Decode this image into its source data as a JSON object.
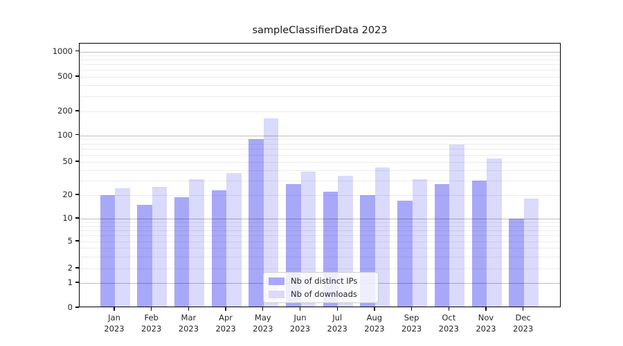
{
  "chart_data": {
    "type": "bar",
    "title": "sampleClassifierData 2023",
    "categories": [
      "Jan",
      "Feb",
      "Mar",
      "Apr",
      "May",
      "Jun",
      "Jul",
      "Aug",
      "Sep",
      "Oct",
      "Nov",
      "Dec"
    ],
    "year_suffix": "2023",
    "series": [
      {
        "name": "Nb of distinct IPs",
        "color": "#a8a8f8",
        "values": [
          20,
          15,
          19,
          23,
          90,
          27,
          22,
          20,
          17,
          27,
          30,
          10
        ]
      },
      {
        "name": "Nb of downloads",
        "color": "#dadafb",
        "values": [
          24,
          25,
          31,
          37,
          165,
          38,
          34,
          43,
          31,
          78,
          55,
          18
        ]
      }
    ],
    "xlabel": "",
    "ylabel": "",
    "yscale": "symlog",
    "ylim": [
      0,
      1000
    ],
    "yticks": [
      0,
      1,
      2,
      5,
      10,
      20,
      50,
      100,
      200,
      500,
      1000
    ],
    "major_grid_values": [
      1,
      10,
      100,
      1000
    ],
    "minor_grid_values": [
      2,
      3,
      4,
      5,
      6,
      7,
      8,
      9,
      20,
      30,
      40,
      50,
      60,
      70,
      80,
      90,
      200,
      300,
      400,
      500,
      600,
      700,
      800,
      900
    ],
    "grid": "on",
    "legend_position": "lower-center"
  }
}
